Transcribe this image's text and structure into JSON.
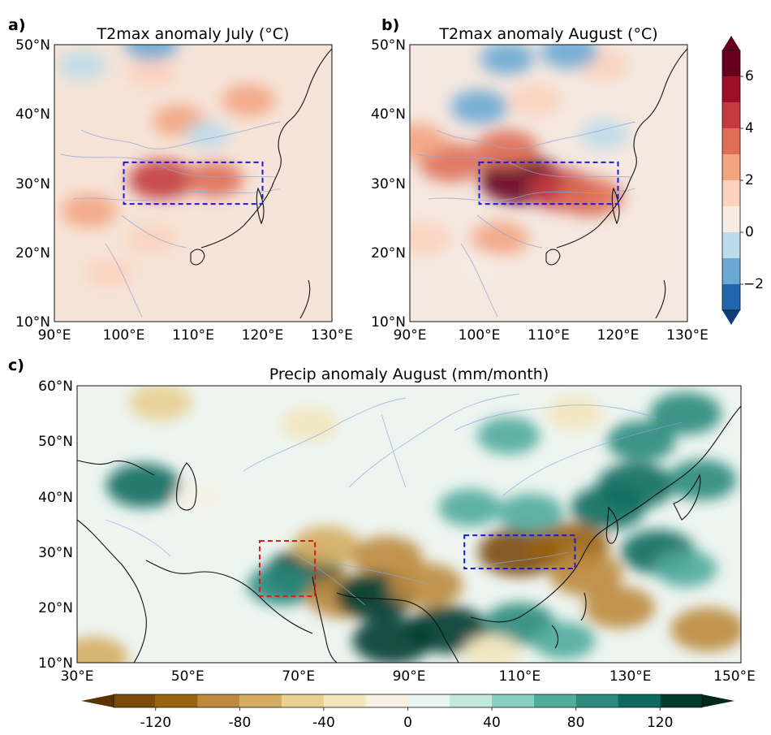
{
  "chart_data": [
    {
      "panel": "a)",
      "type": "heatmap",
      "title": "T2max anomaly July (°C)",
      "x_ticks": [
        "90°E",
        "100°E",
        "110°E",
        "120°E",
        "130°E"
      ],
      "y_ticks": [
        "10°N",
        "20°N",
        "30°N",
        "40°N",
        "50°N"
      ],
      "xlim": [
        90,
        130
      ],
      "ylim": [
        10,
        50
      ],
      "box": {
        "lon": [
          100,
          120
        ],
        "lat": [
          27,
          33
        ],
        "color": "#1a1adb"
      },
      "hotspots": [
        {
          "lon": 105.5,
          "lat": 30.5,
          "value": 4.5
        },
        {
          "lon": 113,
          "lat": 30.5,
          "value": 3
        },
        {
          "lon": 95,
          "lat": 26,
          "value": 2.5
        },
        {
          "lon": 118,
          "lat": 42,
          "value": 2
        },
        {
          "lon": 108,
          "lat": 39,
          "value": 2
        },
        {
          "lon": 104,
          "lat": 46,
          "value": 1.5
        },
        {
          "lon": 94,
          "lat": 47,
          "value": -1
        },
        {
          "lon": 104,
          "lat": 50,
          "value": -2
        },
        {
          "lon": 112,
          "lat": 37,
          "value": -0.5
        },
        {
          "lon": 98,
          "lat": 17,
          "value": 1
        },
        {
          "lon": 104,
          "lat": 22,
          "value": 1.5
        }
      ]
    },
    {
      "panel": "b)",
      "type": "heatmap",
      "title": "T2max anomaly August (°C)",
      "x_ticks": [
        "90°E",
        "100°E",
        "110°E",
        "120°E",
        "130°E"
      ],
      "y_ticks": [
        "10°N",
        "20°N",
        "30°N",
        "40°N",
        "50°N"
      ],
      "xlim": [
        90,
        130
      ],
      "ylim": [
        10,
        50
      ],
      "box": {
        "lon": [
          100,
          120
        ],
        "lat": [
          27,
          33
        ],
        "color": "#1a1adb"
      },
      "hotspots": [
        {
          "lon": 106,
          "lat": 30.5,
          "value": 6.5
        },
        {
          "lon": 112,
          "lat": 29,
          "value": 4
        },
        {
          "lon": 116,
          "lat": 28,
          "value": 3.5
        },
        {
          "lon": 96,
          "lat": 33,
          "value": 3.5
        },
        {
          "lon": 91,
          "lat": 36,
          "value": 2.5
        },
        {
          "lon": 104,
          "lat": 35,
          "value": 3
        },
        {
          "lon": 108,
          "lat": 42,
          "value": 1.5
        },
        {
          "lon": 103,
          "lat": 22,
          "value": 2
        },
        {
          "lon": 118,
          "lat": 47,
          "value": 1
        },
        {
          "lon": 113,
          "lat": 49,
          "value": -2
        },
        {
          "lon": 104,
          "lat": 48,
          "value": -1.5
        },
        {
          "lon": 100,
          "lat": 41,
          "value": -2
        },
        {
          "lon": 118,
          "lat": 37,
          "value": -0.5
        },
        {
          "lon": 100,
          "lat": 18,
          "value": 0.5
        },
        {
          "lon": 92,
          "lat": 22,
          "value": 1.5
        }
      ]
    },
    {
      "panel": "c)",
      "type": "heatmap",
      "title": "Precip anomaly August (mm/month)",
      "x_ticks": [
        "30°E",
        "50°E",
        "70°E",
        "90°E",
        "110°E",
        "130°E",
        "150°E"
      ],
      "y_ticks": [
        "10°N",
        "20°N",
        "30°N",
        "40°N",
        "50°N",
        "60°N"
      ],
      "xlim": [
        30,
        150
      ],
      "ylim": [
        10,
        60
      ],
      "boxes": [
        {
          "lon": [
            63,
            73
          ],
          "lat": [
            22,
            32
          ],
          "color": "#e01818"
        },
        {
          "lon": [
            100,
            120
          ],
          "lat": [
            27,
            33
          ],
          "color": "#1a1adb"
        }
      ],
      "hotspots": [
        {
          "lon": 71,
          "lat": 26,
          "value": 120
        },
        {
          "lon": 67,
          "lat": 24,
          "value": 80
        },
        {
          "lon": 78,
          "lat": 22,
          "value": -100
        },
        {
          "lon": 75,
          "lat": 31,
          "value": -80
        },
        {
          "lon": 86,
          "lat": 29,
          "value": -90
        },
        {
          "lon": 84,
          "lat": 22,
          "value": 120
        },
        {
          "lon": 93,
          "lat": 24,
          "value": -100
        },
        {
          "lon": 97,
          "lat": 16,
          "value": 120
        },
        {
          "lon": 87,
          "lat": 14,
          "value": 120
        },
        {
          "lon": 110,
          "lat": 30,
          "value": -130
        },
        {
          "lon": 119,
          "lat": 31,
          "value": -120
        },
        {
          "lon": 122,
          "lat": 26,
          "value": -100
        },
        {
          "lon": 112,
          "lat": 37,
          "value": 70
        },
        {
          "lon": 101,
          "lat": 38,
          "value": 60
        },
        {
          "lon": 126,
          "lat": 38,
          "value": 100
        },
        {
          "lon": 131,
          "lat": 42,
          "value": 110
        },
        {
          "lon": 132,
          "lat": 50,
          "value": 80
        },
        {
          "lon": 140,
          "lat": 55,
          "value": 90
        },
        {
          "lon": 143,
          "lat": 43,
          "value": 80
        },
        {
          "lon": 135,
          "lat": 30,
          "value": 100
        },
        {
          "lon": 128,
          "lat": 20,
          "value": -90
        },
        {
          "lon": 144,
          "lat": 16,
          "value": -100
        },
        {
          "lon": 140,
          "lat": 27,
          "value": 60
        },
        {
          "lon": 110,
          "lat": 17,
          "value": 90
        },
        {
          "lon": 105,
          "lat": 12,
          "value": -40
        },
        {
          "lon": 118,
          "lat": 14,
          "value": 60
        },
        {
          "lon": 45,
          "lat": 57,
          "value": -60
        },
        {
          "lon": 72,
          "lat": 53,
          "value": -40
        },
        {
          "lon": 108,
          "lat": 51,
          "value": 60
        },
        {
          "lon": 120,
          "lat": 55,
          "value": -40
        },
        {
          "lon": 42,
          "lat": 42,
          "value": 100
        },
        {
          "lon": 33,
          "lat": 11,
          "value": -80
        },
        {
          "lon": 52,
          "lat": 40,
          "value": -10
        }
      ]
    }
  ],
  "colorbar_temp": {
    "ticks": [
      "6",
      "4",
      "2",
      "0",
      "−2"
    ],
    "levels": [
      -3,
      -2,
      -1,
      0,
      1,
      2,
      3,
      4,
      5,
      6,
      7
    ],
    "colors": [
      "#2166ac",
      "#6aa8d3",
      "#bcdbeb",
      "#f6ece4",
      "#fbd3be",
      "#f3a481",
      "#de6e56",
      "#c43a3e",
      "#9b1028",
      "#67001f"
    ]
  },
  "colorbar_precip": {
    "ticks": [
      "-120",
      "-80",
      "-40",
      "0",
      "40",
      "80",
      "120"
    ],
    "levels": [
      -140,
      -120,
      -100,
      -80,
      -60,
      -40,
      -20,
      0,
      20,
      40,
      60,
      80,
      100,
      120,
      140
    ],
    "colors": [
      "#7a4a08",
      "#98620f",
      "#bd8a3d",
      "#d4ad62",
      "#e8cf92",
      "#f3e6bd",
      "#f6f1e3",
      "#e8f5f1",
      "#c2e8df",
      "#89d0c2",
      "#4fab9c",
      "#2a8a7c",
      "#0c6b5e",
      "#003c30"
    ]
  }
}
